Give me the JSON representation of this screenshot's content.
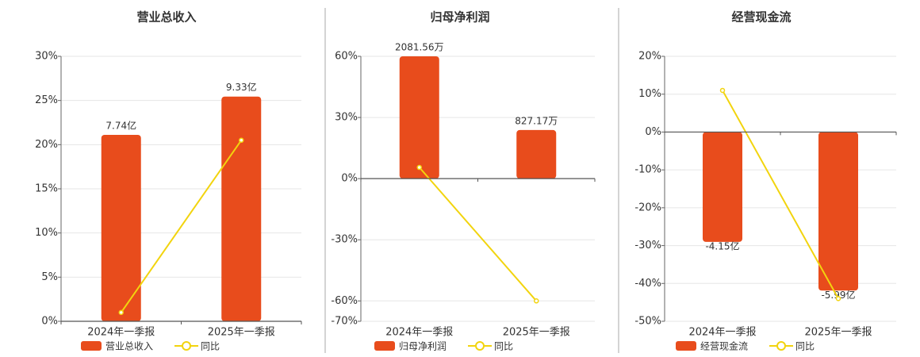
{
  "chart_data": [
    {
      "type": "combo",
      "title": "营业总收入",
      "categories": [
        "2024年一季报",
        "2025年一季报"
      ],
      "series": [
        {
          "name": "营业总收入",
          "type": "bar",
          "axis": "y2",
          "color": "#e84c1c",
          "values": [
            7.74,
            9.33
          ],
          "value_labels": [
            "7.74亿",
            "9.33亿"
          ]
        },
        {
          "name": "同比",
          "type": "line",
          "color": "#f2d40e",
          "values": [
            1,
            20.5
          ]
        }
      ],
      "ylim": [
        0,
        30
      ],
      "yticks": [
        {
          "value": 0,
          "label": "0%"
        },
        {
          "value": 5,
          "label": "5%"
        },
        {
          "value": 10,
          "label": "10%"
        },
        {
          "value": 15,
          "label": "15%"
        },
        {
          "value": 20,
          "label": "20%"
        },
        {
          "value": 25,
          "label": "25%"
        },
        {
          "value": 30,
          "label": "30%"
        }
      ],
      "y2lim": [
        0,
        11
      ],
      "grid": true
    },
    {
      "type": "combo",
      "title": "归母净利润",
      "categories": [
        "2024年一季报",
        "2025年一季报"
      ],
      "series": [
        {
          "name": "归母净利润",
          "type": "bar",
          "axis": "y2",
          "color": "#e84c1c",
          "values": [
            2081.56,
            827.17
          ],
          "value_labels": [
            "2081.56万",
            "827.17万"
          ]
        },
        {
          "name": "同比",
          "type": "line",
          "color": "#f2d40e",
          "values": [
            5.5,
            -60
          ]
        }
      ],
      "ylim": [
        -70,
        60
      ],
      "yticks": [
        {
          "value": -70,
          "label": "-70%"
        },
        {
          "value": -60,
          "label": "-60%"
        },
        {
          "value": -30,
          "label": "-30%"
        },
        {
          "value": 0,
          "label": "0%"
        },
        {
          "value": 30,
          "label": "30%"
        },
        {
          "value": 60,
          "label": "60%"
        }
      ],
      "y2lim": [
        -2428.5,
        2081.56
      ],
      "grid": true
    },
    {
      "type": "combo",
      "title": "经营现金流",
      "categories": [
        "2024年一季报",
        "2025年一季报"
      ],
      "series": [
        {
          "name": "经营现金流",
          "type": "bar",
          "axis": "y2",
          "color": "#e84c1c",
          "values": [
            -4.15,
            -5.99
          ],
          "value_labels": [
            "-4.15亿",
            "-5.99亿"
          ]
        },
        {
          "name": "同比",
          "type": "line",
          "color": "#f2d40e",
          "values": [
            11,
            -44
          ]
        }
      ],
      "ylim": [
        -50,
        20
      ],
      "yticks": [
        {
          "value": -50,
          "label": "-50%"
        },
        {
          "value": -40,
          "label": "-40%"
        },
        {
          "value": -30,
          "label": "-30%"
        },
        {
          "value": -20,
          "label": "-20%"
        },
        {
          "value": -10,
          "label": "-10%"
        },
        {
          "value": 0,
          "label": "0%"
        },
        {
          "value": 10,
          "label": "10%"
        },
        {
          "value": 20,
          "label": "20%"
        }
      ],
      "y2lim": [
        -7.15,
        2.86
      ],
      "grid": true
    }
  ]
}
